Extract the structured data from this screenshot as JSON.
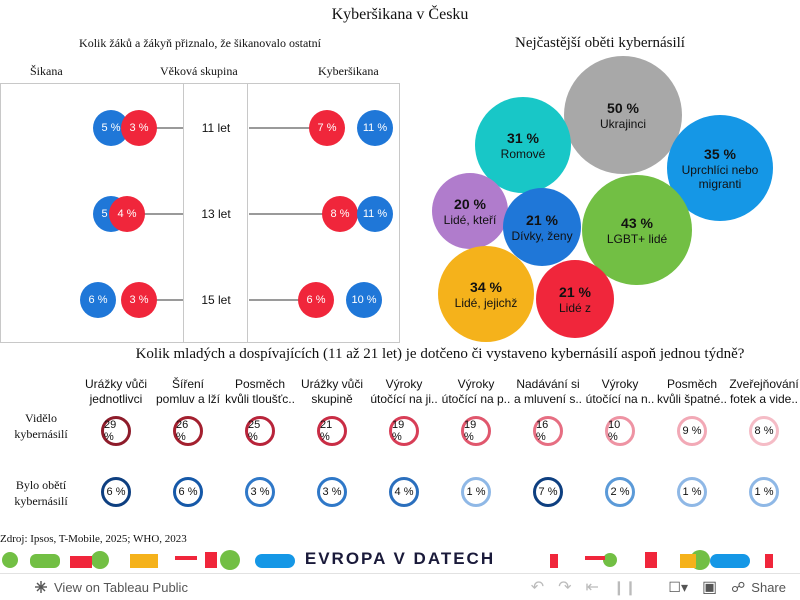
{
  "title": "Kyberšikana v Česku",
  "left_chart": {
    "subtitle": "Kolik žáků a žákyň přiznalo, že šikanovalo ostatní",
    "col_sikana": "Šikana",
    "col_age": "Věková skupina",
    "col_kyber": "Kyberšikana",
    "rows": [
      {
        "age": "11 let",
        "sikana_blue": "5 %",
        "sikana_red": "3 %",
        "kyber_red": "7 %",
        "kyber_blue": "11 %"
      },
      {
        "age": "13 let",
        "sikana_blue": "5 %",
        "sikana_red": "4 %",
        "kyber_red": "8 %",
        "kyber_blue": "11 %"
      },
      {
        "age": "15 let",
        "sikana_blue": "6 %",
        "sikana_red": "3 %",
        "kyber_red": "6 %",
        "kyber_blue": "10 %"
      }
    ]
  },
  "bubbles": {
    "title": "Nejčastější oběti kybernásilí",
    "items": [
      {
        "pct": "50 %",
        "label": "Ukrajinci",
        "color": "#a8a8a8"
      },
      {
        "pct": "31 %",
        "label": "Romové",
        "color": "#18c7c7"
      },
      {
        "pct": "35 %",
        "label": "Uprchlíci nebo migranti",
        "color": "#1597e6"
      },
      {
        "pct": "20 %",
        "label": "Lidé, kteří",
        "color": "#b07ccc"
      },
      {
        "pct": "21 %",
        "label": "Dívky, ženy",
        "color": "#1f77d8"
      },
      {
        "pct": "43 %",
        "label": "LGBT+ lidé",
        "color": "#72bf44"
      },
      {
        "pct": "34 %",
        "label": "Lidé, jejichž",
        "color": "#f5b21b"
      },
      {
        "pct": "21 %",
        "label": "Lidé z",
        "color": "#f0263b"
      }
    ]
  },
  "grid": {
    "title": "Kolik mladých a dospívajících (11 až 21 let) je dotčeno či vystaveno kybernásilí aspoň jednou týdně?",
    "categories": [
      [
        "Urážky vůči",
        "jednotlivci"
      ],
      [
        "Šíření",
        "pomluv a lží"
      ],
      [
        "Posměch",
        "kvůli tloušťc.."
      ],
      [
        "Urážky vůči",
        "skupině"
      ],
      [
        "Výroky",
        "útočící na ji.."
      ],
      [
        "Výroky",
        "útočící na p.."
      ],
      [
        "Nadávání si",
        "a mluvení s.."
      ],
      [
        "Výroky",
        "útočící na n.."
      ],
      [
        "Posměch",
        "kvůli špatné.."
      ],
      [
        "Zveřejňování",
        "fotek a vide.."
      ]
    ],
    "row1_label": [
      "Vidělo",
      "kybernásilí"
    ],
    "row1": [
      "29 %",
      "26 %",
      "25 %",
      "21 %",
      "19 %",
      "19 %",
      "16 %",
      "10 %",
      "9 %",
      "8 %"
    ],
    "row2_label": [
      "Bylo obětí",
      "kybernásilí"
    ],
    "row2": [
      "6 %",
      "6 %",
      "3 %",
      "3 %",
      "4 %",
      "1 %",
      "7 %",
      "2 %",
      "1 %",
      "1 %"
    ]
  },
  "source": "Zdroj: Ipsos, T-Mobile, 2025; WHO, 2023",
  "logo": "EVROPA V DATECH",
  "toolbar": {
    "view_label": "View on Tableau Public",
    "share_label": "Share"
  },
  "colors": {
    "blue": "#1f77d8",
    "red": "#f0263b"
  }
}
